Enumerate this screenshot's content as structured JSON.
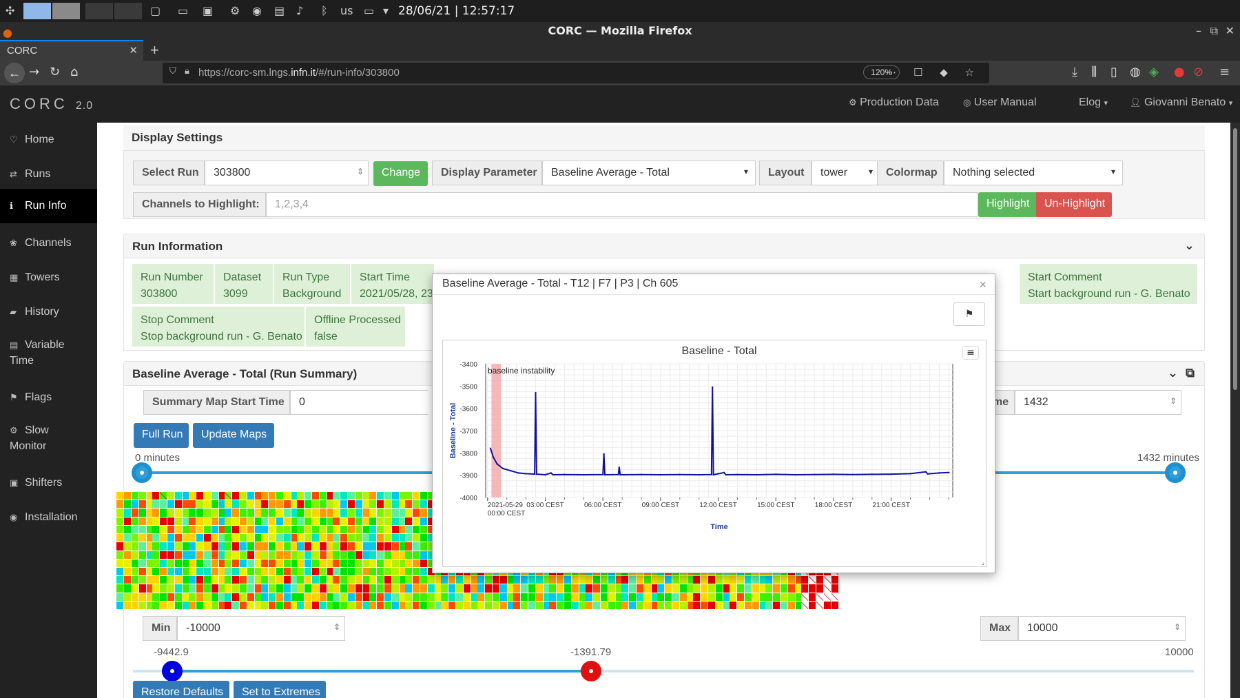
{
  "os": {
    "keyboard_layout": "us",
    "datetime": "28/06/21 | 12:57:17"
  },
  "browser": {
    "window_title": "CORC — Mozilla Firefox",
    "tab_title": "CORC",
    "url_prefix": "https://corc-sm.lngs.",
    "url_host": "infn.it",
    "url_path": "/#/run-info/303800",
    "zoom": "120%"
  },
  "app": {
    "brand": "CORC",
    "brand_version": "2.0",
    "top_nav": {
      "production_data": "Production Data",
      "user_manual": "User Manual",
      "elog": "Elog",
      "user": "Giovanni Benato"
    },
    "sidebar": [
      {
        "label": "Home",
        "icon": "heart-icon"
      },
      {
        "label": "Runs",
        "icon": "arrows-icon"
      },
      {
        "label": "Run Info",
        "icon": "info-icon",
        "active": true
      },
      {
        "label": "Channels",
        "icon": "channels-icon"
      },
      {
        "label": "Towers",
        "icon": "grid-icon"
      },
      {
        "label": "History",
        "icon": "book-icon"
      },
      {
        "label": "Variable",
        "label2": "Time",
        "icon": "calendar-icon"
      },
      {
        "label": "Flags",
        "icon": "flag-icon"
      },
      {
        "label": "Slow",
        "label2": "Monitor",
        "icon": "cogs-icon"
      },
      {
        "label": "Shifters",
        "icon": "id-card-icon"
      },
      {
        "label": "Installation",
        "icon": "eye-icon"
      }
    ]
  },
  "display_settings": {
    "title": "Display Settings",
    "select_run_label": "Select Run",
    "run_value": "303800",
    "change_button": "Change",
    "display_parameter_label": "Display Parameter",
    "display_parameter_value": "Baseline Average - Total",
    "layout_label": "Layout",
    "layout_value": "tower",
    "colormap_label": "Colormap",
    "colormap_value": "Nothing selected",
    "channels_label": "Channels to Highlight:",
    "channels_placeholder": "1,2,3,4",
    "highlight_button": "Highlight",
    "unhighlight_button": "Un-Highlight"
  },
  "run_information": {
    "title": "Run Information",
    "fields": [
      {
        "label": "Run Number",
        "value": "303800"
      },
      {
        "label": "Dataset",
        "value": "3099"
      },
      {
        "label": "Run Type",
        "value": "Background"
      },
      {
        "label": "Start Time",
        "value": "2021/05/28, 23"
      },
      {
        "label": "Start Comment",
        "value": "Start background run - G. Benato"
      },
      {
        "label": "Stop Comment",
        "value": "Stop background run - G. Benato"
      },
      {
        "label": "Offline Processed",
        "value": "false"
      }
    ]
  },
  "summary": {
    "title": "Baseline Average - Total (Run Summary)",
    "start_time_label": "Summary Map Start Time",
    "start_time_value": "0",
    "end_time_label": "me",
    "end_time_value": "1432",
    "full_run_button": "Full Run",
    "update_maps_button": "Update Maps",
    "range_start_label": "0 minutes",
    "range_end_label": "1432 minutes",
    "min_label": "Min",
    "min_value": "-10000",
    "max_label": "Max",
    "max_value": "10000",
    "scale_low": "-9442.9",
    "scale_mid": "-1391.79",
    "scale_high": "10000",
    "restore_defaults_button": "Restore Defaults",
    "set_extremes_button": "Set to Extremes",
    "heatmap_colors": [
      "#00e400",
      "#3cf000",
      "#7cf400",
      "#b8f000",
      "#e6f000",
      "#ffd400",
      "#ff9a00",
      "#ff4a00",
      "#e80000",
      "#00e8c0",
      "#00c8f0",
      "#5af0a0"
    ]
  },
  "modal": {
    "title": "Baseline Average - Total - T12 | F7 | P3 | Ch 605"
  },
  "chart_data": {
    "type": "line",
    "title": "Baseline - Total",
    "xlabel": "Time",
    "ylabel": "Baseline - Total",
    "ylim": [
      -4000,
      -3400
    ],
    "yticks": [
      "-3400",
      "-3500",
      "-3600",
      "-3700",
      "-3800",
      "-3900",
      "-4000"
    ],
    "x_ticks": [
      {
        "h": 0,
        "label": "2021-05-29",
        "label2": "00:00 CEST"
      },
      {
        "h": 3,
        "label": "03:00 CEST"
      },
      {
        "h": 6,
        "label": "06:00 CEST"
      },
      {
        "h": 9,
        "label": "09:00 CEST"
      },
      {
        "h": 12,
        "label": "12:00 CEST"
      },
      {
        "h": 15,
        "label": "15:00 CEST"
      },
      {
        "h": 18,
        "label": "18:00 CEST"
      },
      {
        "h": 21,
        "label": "21:00 CEST"
      }
    ],
    "xlim_hours": [
      -0.1,
      24.2
    ],
    "band": {
      "from_h": 0.2,
      "to_h": 0.7,
      "label": "baseline instability",
      "color": "#f4a6a6"
    },
    "series": [
      {
        "color": "#1010a0",
        "points": [
          [
            0.15,
            -3780
          ],
          [
            0.3,
            -3820
          ],
          [
            0.5,
            -3850
          ],
          [
            0.8,
            -3870
          ],
          [
            1.2,
            -3880
          ],
          [
            1.6,
            -3890
          ],
          [
            2.0,
            -3893
          ],
          [
            2.45,
            -3895
          ],
          [
            2.5,
            -3530
          ],
          [
            2.55,
            -3895
          ],
          [
            3.0,
            -3898
          ],
          [
            3.3,
            -3890
          ],
          [
            3.4,
            -3898
          ],
          [
            4.0,
            -3897
          ],
          [
            5.0,
            -3898
          ],
          [
            6.0,
            -3897
          ],
          [
            6.05,
            -3805
          ],
          [
            6.1,
            -3898
          ],
          [
            6.8,
            -3897
          ],
          [
            6.85,
            -3865
          ],
          [
            6.9,
            -3898
          ],
          [
            8.0,
            -3897
          ],
          [
            9.0,
            -3898
          ],
          [
            10.0,
            -3897
          ],
          [
            11.0,
            -3898
          ],
          [
            11.65,
            -3897
          ],
          [
            11.7,
            -3505
          ],
          [
            11.75,
            -3898
          ],
          [
            12.3,
            -3888
          ],
          [
            12.4,
            -3898
          ],
          [
            13.0,
            -3897
          ],
          [
            14.0,
            -3898
          ],
          [
            15.0,
            -3896
          ],
          [
            16.0,
            -3898
          ],
          [
            17.0,
            -3897
          ],
          [
            18.0,
            -3896
          ],
          [
            19.0,
            -3897
          ],
          [
            20.0,
            -3896
          ],
          [
            21.0,
            -3895
          ],
          [
            22.0,
            -3893
          ],
          [
            22.8,
            -3885
          ],
          [
            22.9,
            -3894
          ],
          [
            23.5,
            -3890
          ],
          [
            24.0,
            -3888
          ]
        ]
      }
    ]
  }
}
